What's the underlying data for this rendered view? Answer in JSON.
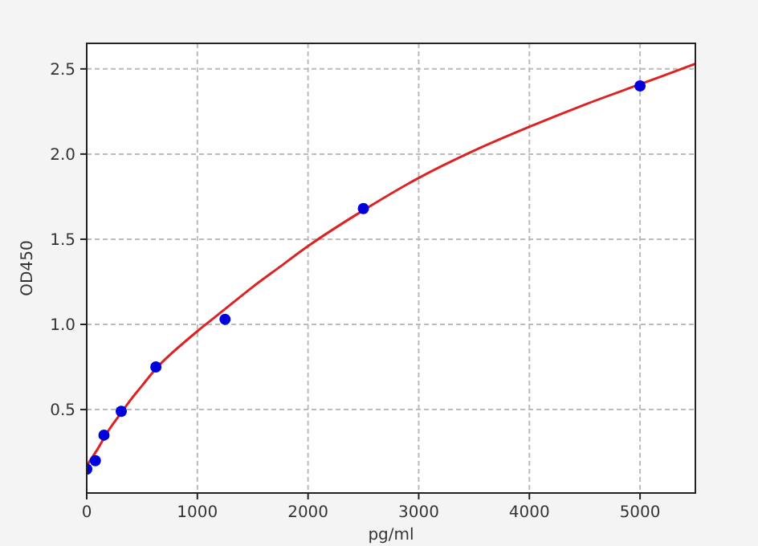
{
  "chart_data": {
    "type": "scatter",
    "xlabel": "pg/ml",
    "ylabel": "OD450",
    "xlim": [
      0,
      5500
    ],
    "ylim": [
      0.01,
      2.65
    ],
    "xticks": [
      0,
      1000,
      2000,
      3000,
      4000,
      5000
    ],
    "yticks": [
      0.5,
      {
        "value": 1,
        "label": "1.0"
      },
      1.5,
      {
        "value": 2,
        "label": "2.0"
      },
      2.5
    ],
    "grid": true,
    "marker": "circle",
    "series": [
      {
        "type": "line",
        "color": "#dd2222",
        "marker": "none",
        "x": [
          0,
          100,
          200,
          300,
          400,
          500,
          625,
          750,
          1000,
          1250,
          1500,
          1750,
          2000,
          2500,
          3000,
          3500,
          4000,
          4500,
          5000,
          5500
        ],
        "values": [
          0.17,
          0.27,
          0.38,
          0.47,
          0.56,
          0.64,
          0.74,
          0.82,
          0.96,
          1.09,
          1.22,
          1.34,
          1.46,
          1.67,
          1.86,
          2.02,
          2.16,
          2.29,
          2.41,
          2.53
        ]
      },
      {
        "color": "#0000dd",
        "x": [
          0,
          78,
          156,
          312,
          625,
          1250,
          2500,
          5000
        ],
        "values": [
          0.15,
          0.2,
          0.35,
          0.49,
          0.75,
          1.03,
          1.68,
          2.4
        ]
      }
    ]
  }
}
